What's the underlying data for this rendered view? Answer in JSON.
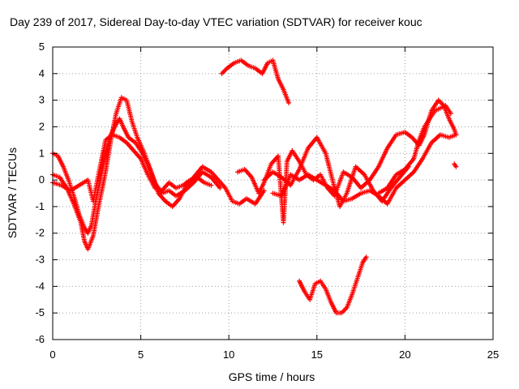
{
  "chart_data": {
    "type": "scatter",
    "title": "Day 239 of 2017, Sidereal Day-to-day VTEC variation (SDTVAR) for receiver kouc",
    "xlabel": "GPS time / hours",
    "ylabel": "SDTVAR / TECUs",
    "xlim": [
      0,
      25
    ],
    "ylim": [
      -6,
      5
    ],
    "xticks": [
      0,
      5,
      10,
      15,
      20,
      25
    ],
    "yticks": [
      -6,
      -5,
      -4,
      -3,
      -2,
      -1,
      0,
      1,
      2,
      3,
      4,
      5
    ],
    "grid": true,
    "legend": "none",
    "marker": "plus",
    "color": "#ff0000",
    "series": [
      {
        "points": [
          [
            0,
            1.0
          ],
          [
            0.3,
            0.9
          ],
          [
            0.6,
            0.5
          ],
          [
            0.9,
            0.0
          ],
          [
            1.2,
            -0.6
          ],
          [
            1.5,
            -1.3
          ],
          [
            1.8,
            -1.8
          ],
          [
            2.0,
            -2.0
          ],
          [
            2.2,
            -1.7
          ],
          [
            2.5,
            -0.6
          ],
          [
            2.8,
            0.3
          ],
          [
            3.0,
            1.0
          ],
          [
            3.3,
            1.7
          ],
          [
            3.6,
            2.1
          ],
          [
            3.8,
            2.3
          ],
          [
            4.0,
            2.0
          ],
          [
            4.3,
            1.6
          ],
          [
            4.7,
            1.4
          ],
          [
            5.0,
            1.1
          ],
          [
            5.4,
            0.6
          ],
          [
            5.8,
            -0.1
          ],
          [
            6.2,
            -0.5
          ],
          [
            6.6,
            -0.4
          ],
          [
            7.0,
            -0.6
          ],
          [
            7.5,
            -0.4
          ],
          [
            8.0,
            -0.1
          ],
          [
            8.5,
            0.3
          ],
          [
            9.0,
            0.1
          ],
          [
            9.5,
            -0.3
          ]
        ]
      },
      {
        "points": [
          [
            0,
            0.2
          ],
          [
            0.4,
            0.1
          ],
          [
            0.8,
            -0.3
          ],
          [
            1.2,
            -0.9
          ],
          [
            1.6,
            -1.6
          ],
          [
            1.8,
            -2.3
          ],
          [
            2.0,
            -2.6
          ],
          [
            2.3,
            -2.1
          ],
          [
            2.6,
            -1.0
          ],
          [
            3.0,
            0.3
          ],
          [
            3.3,
            1.5
          ],
          [
            3.6,
            2.5
          ],
          [
            3.9,
            3.1
          ],
          [
            4.2,
            3.0
          ],
          [
            4.5,
            2.2
          ],
          [
            4.8,
            1.6
          ],
          [
            5.2,
            1.0
          ],
          [
            5.6,
            0.3
          ],
          [
            6.0,
            -0.5
          ],
          [
            6.4,
            -0.8
          ],
          [
            6.8,
            -1.0
          ],
          [
            7.2,
            -0.7
          ],
          [
            7.6,
            -0.2
          ],
          [
            8.0,
            0.1
          ],
          [
            8.5,
            0.5
          ],
          [
            9.0,
            0.3
          ],
          [
            9.4,
            0.0
          ],
          [
            9.8,
            -0.3
          ],
          [
            10.2,
            -0.8
          ],
          [
            10.6,
            -0.9
          ],
          [
            11.0,
            -0.7
          ],
          [
            11.5,
            -0.9
          ],
          [
            12.0,
            -0.4
          ]
        ]
      },
      {
        "points": [
          [
            0,
            -0.1
          ],
          [
            0.5,
            -0.2
          ],
          [
            1.0,
            -0.4
          ],
          [
            1.5,
            -0.2
          ],
          [
            2.0,
            0.0
          ],
          [
            2.3,
            -0.8
          ],
          [
            2.6,
            0.2
          ],
          [
            3.0,
            1.5
          ],
          [
            3.4,
            1.7
          ],
          [
            3.8,
            1.6
          ],
          [
            4.2,
            1.4
          ],
          [
            4.6,
            1.1
          ],
          [
            5.0,
            0.8
          ],
          [
            5.4,
            0.2
          ],
          [
            5.8,
            -0.3
          ],
          [
            6.2,
            -0.4
          ],
          [
            6.6,
            -0.1
          ],
          [
            7.0,
            -0.3
          ],
          [
            7.4,
            -0.2
          ],
          [
            7.8,
            0.0
          ],
          [
            8.2,
            0.1
          ],
          [
            8.6,
            -0.1
          ],
          [
            9.0,
            -0.2
          ]
        ]
      },
      {
        "points": [
          [
            9.6,
            4.0
          ],
          [
            9.9,
            4.2
          ],
          [
            10.3,
            4.4
          ],
          [
            10.7,
            4.5
          ],
          [
            11.1,
            4.3
          ],
          [
            11.5,
            4.2
          ],
          [
            11.9,
            4.0
          ],
          [
            12.2,
            4.4
          ],
          [
            12.5,
            4.5
          ],
          [
            12.8,
            3.8
          ],
          [
            13.1,
            3.4
          ],
          [
            13.4,
            2.9
          ]
        ]
      },
      {
        "points": [
          [
            10.5,
            0.3
          ],
          [
            10.9,
            0.4
          ],
          [
            11.3,
            0.1
          ],
          [
            11.7,
            -0.5
          ],
          [
            12.0,
            -0.1
          ],
          [
            12.4,
            0.6
          ],
          [
            12.8,
            0.9
          ],
          [
            13.1,
            -1.6
          ],
          [
            13.3,
            0.7
          ],
          [
            13.6,
            1.1
          ],
          [
            14.0,
            0.7
          ],
          [
            14.4,
            0.2
          ],
          [
            14.8,
            0.0
          ],
          [
            15.2,
            0.2
          ],
          [
            15.6,
            -0.3
          ],
          [
            16.0,
            -0.6
          ],
          [
            16.5,
            0.3
          ],
          [
            17.0,
            0.1
          ],
          [
            17.5,
            -0.3
          ],
          [
            18.0,
            0.0
          ]
        ]
      },
      {
        "points": [
          [
            12.0,
            0.0
          ],
          [
            12.5,
            0.3
          ],
          [
            13.0,
            0.1
          ],
          [
            13.5,
            -0.2
          ],
          [
            14.0,
            0.4
          ],
          [
            14.5,
            1.2
          ],
          [
            15.0,
            1.6
          ],
          [
            15.5,
            1.0
          ],
          [
            16.0,
            -0.3
          ],
          [
            16.3,
            -1.0
          ],
          [
            16.7,
            -0.5
          ],
          [
            17.2,
            0.5
          ],
          [
            17.7,
            0.2
          ],
          [
            18.2,
            -0.4
          ],
          [
            18.7,
            -0.8
          ],
          [
            19.2,
            -0.3
          ],
          [
            19.7,
            0.1
          ],
          [
            20.2,
            0.5
          ]
        ]
      },
      {
        "points": [
          [
            12.5,
            -0.5
          ],
          [
            13.0,
            -0.6
          ],
          [
            13.5,
            0.2
          ],
          [
            14.0,
            0.0
          ],
          [
            14.5,
            0.2
          ],
          [
            15.0,
            0.0
          ],
          [
            15.5,
            -0.2
          ],
          [
            16.0,
            -0.4
          ],
          [
            16.5,
            -0.8
          ],
          [
            17.0,
            -0.7
          ],
          [
            17.5,
            -0.5
          ],
          [
            18.0,
            -0.4
          ],
          [
            18.5,
            -0.6
          ],
          [
            19.0,
            -0.9
          ],
          [
            19.5,
            -0.3
          ],
          [
            20.0,
            0.0
          ],
          [
            20.5,
            0.3
          ],
          [
            21.0,
            0.8
          ],
          [
            21.5,
            1.4
          ],
          [
            22.0,
            1.7
          ],
          [
            22.5,
            1.6
          ],
          [
            22.9,
            1.7
          ]
        ]
      },
      {
        "points": [
          [
            14.0,
            -3.8
          ],
          [
            14.3,
            -4.2
          ],
          [
            14.6,
            -4.5
          ],
          [
            14.9,
            -3.9
          ],
          [
            15.2,
            -3.8
          ],
          [
            15.5,
            -4.1
          ],
          [
            15.8,
            -4.6
          ],
          [
            16.1,
            -5.0
          ],
          [
            16.4,
            -5.0
          ],
          [
            16.7,
            -4.8
          ],
          [
            17.0,
            -4.3
          ],
          [
            17.3,
            -3.7
          ],
          [
            17.6,
            -3.1
          ],
          [
            17.8,
            -2.9
          ]
        ]
      },
      {
        "points": [
          [
            18.0,
            0.0
          ],
          [
            18.5,
            0.5
          ],
          [
            19.0,
            1.2
          ],
          [
            19.5,
            1.7
          ],
          [
            20.0,
            1.8
          ],
          [
            20.4,
            1.6
          ],
          [
            20.8,
            1.3
          ],
          [
            21.1,
            1.7
          ],
          [
            21.5,
            2.6
          ],
          [
            21.9,
            3.0
          ],
          [
            22.2,
            2.8
          ],
          [
            22.5,
            2.3
          ],
          [
            22.8,
            1.9
          ],
          [
            22.9,
            1.7
          ]
        ]
      },
      {
        "points": [
          [
            18.5,
            -0.5
          ],
          [
            19.0,
            -0.3
          ],
          [
            19.5,
            0.2
          ],
          [
            20.0,
            0.4
          ],
          [
            20.5,
            0.8
          ],
          [
            20.8,
            1.5
          ],
          [
            21.1,
            2.0
          ],
          [
            21.4,
            2.3
          ],
          [
            21.7,
            2.6
          ],
          [
            22.0,
            2.7
          ],
          [
            22.3,
            2.8
          ],
          [
            22.6,
            2.5
          ]
        ]
      },
      {
        "points": [
          [
            22.8,
            0.6
          ],
          [
            22.9,
            0.5
          ]
        ]
      }
    ]
  }
}
